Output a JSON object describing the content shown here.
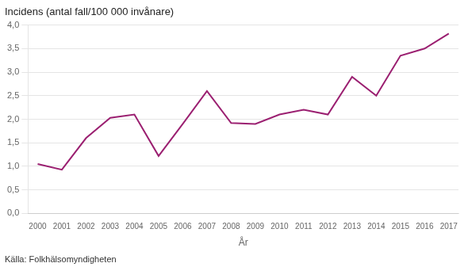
{
  "chart_data": {
    "type": "line",
    "title": "Incidens (antal fall/100 000 invånare)",
    "x_label": "År",
    "annotations": [
      "Källa: Folkhälsomyndigheten"
    ],
    "x": [
      2000,
      2001,
      2002,
      2003,
      2004,
      2005,
      2006,
      2007,
      2008,
      2009,
      2010,
      2011,
      2012,
      2013,
      2014,
      2015,
      2016,
      2017
    ],
    "values": [
      1.05,
      0.93,
      1.6,
      2.03,
      2.1,
      1.22,
      1.9,
      2.6,
      1.92,
      1.9,
      2.1,
      2.2,
      2.1,
      2.9,
      2.5,
      3.35,
      3.5,
      3.82
    ],
    "color": "#9b2071",
    "xlim": [
      1999.6,
      2017.4
    ],
    "xticks": [
      2000,
      2001,
      2002,
      2003,
      2004,
      2005,
      2006,
      2007,
      2008,
      2009,
      2010,
      2011,
      2012,
      2013,
      2014,
      2015,
      2016,
      2017
    ],
    "ylim": [
      0,
      4.0
    ],
    "yticks": [
      {
        "value": 0.0,
        "label": "0,0"
      },
      {
        "value": 0.5,
        "label": "0,5"
      },
      {
        "value": 1.0,
        "label": "1,0"
      },
      {
        "value": 1.5,
        "label": "1,5"
      },
      {
        "value": 2.0,
        "label": "2,0"
      },
      {
        "value": 2.5,
        "label": "2,5"
      },
      {
        "value": 3.0,
        "label": "3,0"
      },
      {
        "value": 3.5,
        "label": "3,5"
      },
      {
        "value": 4.0,
        "label": "4,0"
      }
    ],
    "grid": "y"
  }
}
